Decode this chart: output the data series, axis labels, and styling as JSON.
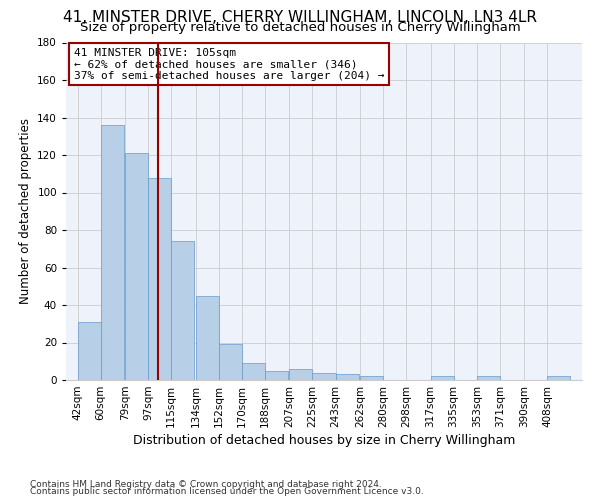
{
  "title1": "41, MINSTER DRIVE, CHERRY WILLINGHAM, LINCOLN, LN3 4LR",
  "title2": "Size of property relative to detached houses in Cherry Willingham",
  "xlabel": "Distribution of detached houses by size in Cherry Willingham",
  "ylabel": "Number of detached properties",
  "footer1": "Contains HM Land Registry data © Crown copyright and database right 2024.",
  "footer2": "Contains public sector information licensed under the Open Government Licence v3.0.",
  "annotation_line1": "41 MINSTER DRIVE: 105sqm",
  "annotation_line2": "← 62% of detached houses are smaller (346)",
  "annotation_line3": "37% of semi-detached houses are larger (204) →",
  "property_size": 105,
  "bar_categories": [
    "42sqm",
    "60sqm",
    "79sqm",
    "97sqm",
    "115sqm",
    "134sqm",
    "152sqm",
    "170sqm",
    "188sqm",
    "207sqm",
    "225sqm",
    "243sqm",
    "262sqm",
    "280sqm",
    "298sqm",
    "317sqm",
    "335sqm",
    "353sqm",
    "371sqm",
    "390sqm",
    "408sqm"
  ],
  "bar_values": [
    31,
    136,
    121,
    108,
    74,
    45,
    19,
    9,
    5,
    6,
    4,
    3,
    2,
    0,
    0,
    2,
    0,
    2,
    0,
    0,
    2
  ],
  "bar_left_edges": [
    42,
    60,
    79,
    97,
    115,
    134,
    152,
    170,
    188,
    207,
    225,
    243,
    262,
    280,
    298,
    317,
    335,
    353,
    371,
    390,
    408
  ],
  "bin_width": 18,
  "bar_color": "#b8cfe8",
  "bar_edgecolor": "#6699cc",
  "vline_x": 105,
  "vline_color": "#990000",
  "ylim": [
    0,
    180
  ],
  "yticks": [
    0,
    20,
    40,
    60,
    80,
    100,
    120,
    140,
    160,
    180
  ],
  "grid_color": "#cccccc",
  "bg_color": "#eef2fa",
  "annotation_box_color": "#990000",
  "title1_fontsize": 11,
  "title2_fontsize": 9.5,
  "ylabel_fontsize": 8.5,
  "xlabel_fontsize": 9,
  "tick_fontsize": 7.5,
  "footer_fontsize": 6.5,
  "annotation_fontsize": 8
}
